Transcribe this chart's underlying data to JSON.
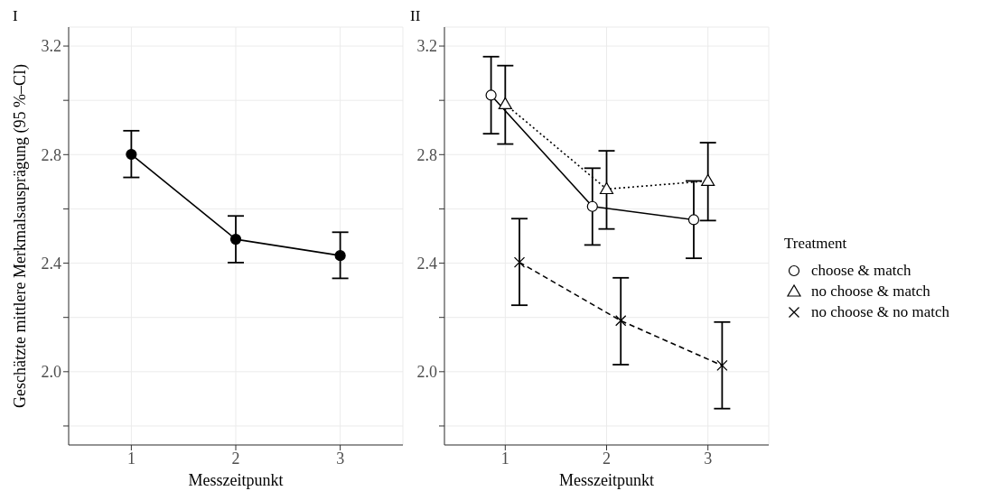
{
  "chart_data": [
    {
      "type": "line",
      "title": "I",
      "xlabel": "Messzeitpunkt",
      "ylabel": "Geschätzte mittlere Merkmalsausprägung (95 %–CI)",
      "xlim": [
        0.4,
        3.6
      ],
      "xticks": [
        1,
        2,
        3
      ],
      "ylim": [
        1.73,
        3.27
      ],
      "yticks": [
        {
          "value": 1.8,
          "label": null
        },
        {
          "value": 2,
          "label": "2.0"
        },
        {
          "value": 2.2,
          "label": null
        },
        2.4,
        {
          "value": 2.6,
          "label": null
        },
        2.8,
        {
          "value": 3.0,
          "label": null
        },
        3.2
      ],
      "grid": true,
      "legend": false,
      "marker": "circle",
      "line_style": "solid",
      "series": [
        {
          "color": "#000000",
          "x": [
            1,
            2,
            3
          ],
          "values": [
            2.801,
            2.488,
            2.428
          ],
          "errors": [
            [
              2.716,
              2.888
            ],
            [
              2.402,
              2.574
            ],
            [
              2.344,
              2.514
            ]
          ]
        }
      ]
    },
    {
      "type": "line",
      "title": "II",
      "xlabel": "Messzeitpunkt",
      "legend_title": "Treatment",
      "xlim": [
        0.4,
        3.6
      ],
      "xticks": [
        1,
        2,
        3
      ],
      "ylim": [
        1.73,
        3.27
      ],
      "yticks": [
        {
          "value": 1.8,
          "label": null
        },
        {
          "value": 2,
          "label": "2.0"
        },
        {
          "value": 2.2,
          "label": null
        },
        2.4,
        {
          "value": 2.6,
          "label": null
        },
        2.8,
        {
          "value": 3.0,
          "label": null
        },
        3.2
      ],
      "grid": true,
      "legend": "right",
      "series": [
        {
          "name": "choose & match",
          "color": "#000000",
          "marker": "circle",
          "line_style": "solid",
          "x": [
            0.86,
            1.86,
            2.86
          ],
          "values": [
            3.019,
            2.609,
            2.56
          ],
          "errors": [
            [
              2.877,
              3.161
            ],
            [
              2.467,
              2.75
            ],
            [
              2.418,
              2.703
            ]
          ]
        },
        {
          "name": "no choose & match",
          "color": "#000000",
          "marker": "triangle",
          "line_style": "dotted",
          "x": [
            1,
            2,
            3
          ],
          "values": [
            2.986,
            2.673,
            2.703
          ],
          "errors": [
            [
              2.839,
              3.128
            ],
            [
              2.526,
              2.814
            ],
            [
              2.557,
              2.844
            ]
          ]
        },
        {
          "name": "no choose & no match",
          "color": "#000000",
          "marker": "cross",
          "line_style": "dashed",
          "x": [
            1.14,
            2.14,
            3.14
          ],
          "values": [
            2.403,
            2.188,
            2.023
          ],
          "errors": [
            [
              2.245,
              2.564
            ],
            [
              2.026,
              2.346
            ],
            [
              1.864,
              2.183
            ]
          ]
        }
      ]
    }
  ]
}
